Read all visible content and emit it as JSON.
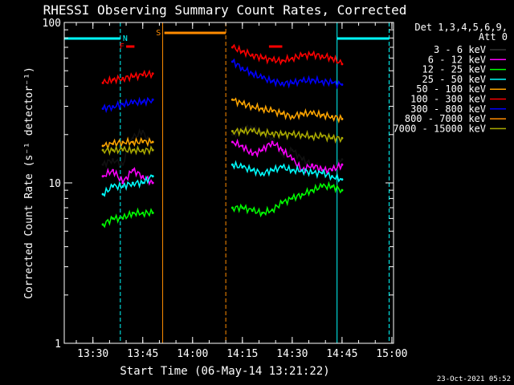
{
  "chart_data": {
    "type": "line",
    "title": "RHESSI Observing Summary Count Rates, Corrected",
    "xlabel": "Start Time (06-May-14 13:21:22)",
    "ylabel": "Corrected Count Rate (s⁻¹ detector⁻¹)",
    "yscale": "log",
    "xlim": [
      "13:21:22",
      "15:00:30"
    ],
    "ylim": [
      1,
      100
    ],
    "x_ticks": [
      "13:30",
      "13:45",
      "14:00",
      "14:15",
      "14:30",
      "14:45",
      "15:00"
    ],
    "y_ticks": [
      "1",
      "10",
      "100"
    ],
    "legend_title": "Det 1,3,4,5,6,9,",
    "legend_subtitle": "Att 0",
    "legend_position": "right",
    "grid": false,
    "series": [
      {
        "name": "3 - 6 keV",
        "color": "#000000",
        "x": [
          "13:33",
          "13:36",
          "13:39",
          "13:42",
          "13:45",
          "13:48",
          "14:12",
          "14:15",
          "14:18",
          "14:21",
          "14:24",
          "14:27",
          "14:30",
          "14:33",
          "14:36",
          "14:39",
          "14:42",
          "14:45"
        ],
        "values": [
          13,
          14,
          13,
          19,
          21,
          16,
          20,
          22,
          22,
          20,
          19,
          15,
          16,
          14,
          13,
          12,
          12,
          14
        ]
      },
      {
        "name": "6 - 12 keV",
        "color": "#ff00ff",
        "x": [
          "13:33",
          "13:36",
          "13:39",
          "13:42",
          "13:45",
          "13:48",
          "14:12",
          "14:15",
          "14:18",
          "14:21",
          "14:24",
          "14:27",
          "14:30",
          "14:33",
          "14:36",
          "14:39",
          "14:42",
          "14:45"
        ],
        "values": [
          11,
          12,
          10,
          12,
          11,
          10,
          18,
          17,
          15,
          16,
          18,
          16,
          14,
          12,
          13,
          12,
          12,
          13
        ]
      },
      {
        "name": "12 - 25 keV",
        "color": "#00ff00",
        "x": [
          "13:33",
          "13:36",
          "13:39",
          "13:42",
          "13:45",
          "13:48",
          "14:12",
          "14:15",
          "14:18",
          "14:21",
          "14:24",
          "14:27",
          "14:30",
          "14:33",
          "14:36",
          "14:39",
          "14:42",
          "14:45"
        ],
        "values": [
          5.5,
          6.0,
          6.0,
          6.5,
          6.5,
          6.5,
          7.0,
          7.0,
          6.7,
          6.5,
          6.8,
          7.5,
          8.0,
          8.5,
          9.0,
          9.5,
          9.5,
          9.0
        ]
      },
      {
        "name": "25 - 50 keV",
        "color": "#00ffff",
        "x": [
          "13:33",
          "13:36",
          "13:39",
          "13:42",
          "13:45",
          "13:48",
          "14:12",
          "14:15",
          "14:18",
          "14:21",
          "14:24",
          "14:27",
          "14:30",
          "14:33",
          "14:36",
          "14:39",
          "14:42",
          "14:45"
        ],
        "values": [
          8.5,
          9.5,
          9.5,
          10,
          10,
          11,
          13,
          12.5,
          12,
          11.5,
          12,
          12.5,
          12,
          12,
          11.5,
          11.5,
          11,
          10.5
        ]
      },
      {
        "name": "50 - 100 keV",
        "color": "#ffa500",
        "x": [
          "13:33",
          "13:36",
          "13:39",
          "13:42",
          "13:45",
          "13:48",
          "14:12",
          "14:15",
          "14:18",
          "14:21",
          "14:24",
          "14:27",
          "14:30",
          "14:33",
          "14:36",
          "14:39",
          "14:42",
          "14:45"
        ],
        "values": [
          17,
          17.5,
          18,
          18,
          18,
          18,
          33,
          31,
          30,
          29,
          28,
          27,
          26,
          27,
          27,
          26.5,
          26,
          25
        ]
      },
      {
        "name": "100 - 300 keV",
        "color": "#ff0000",
        "x": [
          "13:33",
          "13:36",
          "13:39",
          "13:42",
          "13:45",
          "13:48",
          "14:12",
          "14:15",
          "14:18",
          "14:21",
          "14:24",
          "14:27",
          "14:30",
          "14:33",
          "14:36",
          "14:39",
          "14:42",
          "14:45"
        ],
        "values": [
          42,
          44,
          45,
          46,
          47,
          48,
          70,
          66,
          63,
          60,
          58,
          58,
          60,
          62,
          63,
          62,
          60,
          55
        ]
      },
      {
        "name": "300 - 800 keV",
        "color": "#0000ff",
        "x": [
          "13:33",
          "13:36",
          "13:39",
          "13:42",
          "13:45",
          "13:48",
          "14:12",
          "14:15",
          "14:18",
          "14:21",
          "14:24",
          "14:27",
          "14:30",
          "14:33",
          "14:36",
          "14:39",
          "14:42",
          "14:45"
        ],
        "values": [
          29,
          30,
          31,
          31.5,
          32,
          33,
          57,
          52,
          48,
          45,
          43,
          42,
          42,
          43,
          44,
          43,
          42,
          41
        ]
      },
      {
        "name": "800 - 7000 keV",
        "color": "#ff8c00",
        "x": [],
        "values": []
      },
      {
        "name": "7000 - 15000 keV",
        "color": "#aaaa00",
        "x": [
          "13:33",
          "13:36",
          "13:39",
          "13:42",
          "13:45",
          "13:48",
          "14:12",
          "14:15",
          "14:18",
          "14:21",
          "14:24",
          "14:27",
          "14:30",
          "14:33",
          "14:36",
          "14:39",
          "14:42",
          "14:45"
        ],
        "values": [
          16,
          16,
          16,
          16,
          16,
          16,
          21,
          21,
          21,
          20.5,
          20.5,
          20,
          20,
          20,
          19.5,
          19.5,
          19,
          19
        ]
      }
    ],
    "annotations": [
      {
        "text": "N",
        "color": "#00ffff"
      },
      {
        "text": "F",
        "color": "#ff0000"
      },
      {
        "text": "S",
        "color": "#ff8c00"
      }
    ],
    "footer": "23-Oct-2021 05:52"
  }
}
